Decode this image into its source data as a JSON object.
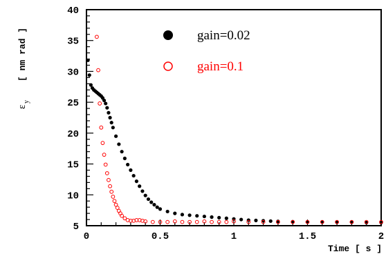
{
  "chart_data": {
    "type": "scatter",
    "xlabel": "Time [ s ]",
    "ylabel_symbol": "ε",
    "ylabel_sub": "y",
    "ylabel_unit": "[ nm rad ]",
    "xlim": [
      0,
      2
    ],
    "ylim": [
      5,
      40
    ],
    "xticks": [
      0,
      0.5,
      1,
      1.5,
      2
    ],
    "xtick_labels": [
      "0",
      "0.5",
      "1",
      "1.5",
      "2"
    ],
    "yticks": [
      5,
      10,
      15,
      20,
      25,
      30,
      35,
      40
    ],
    "ytick_labels": [
      "5",
      "10",
      "15",
      "20",
      "25",
      "30",
      "35",
      "40"
    ],
    "legend_position": "top-right",
    "series": [
      {
        "name": "gain=0.02",
        "marker": "filled-circle",
        "color": "#000000",
        "x": [
          0.01,
          0.02,
          0.03,
          0.04,
          0.05,
          0.06,
          0.07,
          0.08,
          0.09,
          0.1,
          0.11,
          0.12,
          0.13,
          0.14,
          0.15,
          0.16,
          0.17,
          0.18,
          0.2,
          0.22,
          0.24,
          0.26,
          0.28,
          0.3,
          0.32,
          0.34,
          0.36,
          0.38,
          0.4,
          0.42,
          0.44,
          0.46,
          0.48,
          0.5,
          0.55,
          0.6,
          0.65,
          0.7,
          0.75,
          0.8,
          0.85,
          0.9,
          0.95,
          1.0,
          1.05,
          1.1,
          1.15,
          1.2,
          1.25,
          1.3,
          1.4,
          1.5,
          1.6,
          1.7,
          1.8,
          1.9,
          2.0
        ],
        "y": [
          31.8,
          29.4,
          27.8,
          27.3,
          27.0,
          26.8,
          26.6,
          26.4,
          26.2,
          26.0,
          25.7,
          25.3,
          24.8,
          24.1,
          23.3,
          22.5,
          21.7,
          20.9,
          19.5,
          18.2,
          17.0,
          15.9,
          14.9,
          14.0,
          13.1,
          12.2,
          11.4,
          10.6,
          9.9,
          9.3,
          8.8,
          8.4,
          8.0,
          7.7,
          7.3,
          7.0,
          6.8,
          6.7,
          6.6,
          6.5,
          6.4,
          6.3,
          6.2,
          6.1,
          6.0,
          5.9,
          5.85,
          5.8,
          5.75,
          5.7,
          5.65,
          5.6,
          5.6,
          5.55,
          5.55,
          5.5,
          5.5
        ]
      },
      {
        "name": "gain=0.1",
        "marker": "open-circle",
        "color": "#ff0000",
        "x": [
          0.07,
          0.08,
          0.09,
          0.1,
          0.11,
          0.12,
          0.13,
          0.14,
          0.15,
          0.16,
          0.17,
          0.18,
          0.19,
          0.2,
          0.21,
          0.22,
          0.23,
          0.24,
          0.26,
          0.28,
          0.3,
          0.32,
          0.34,
          0.36,
          0.38,
          0.4,
          0.45,
          0.5,
          0.55,
          0.6,
          0.65,
          0.7,
          0.75,
          0.8,
          0.85,
          0.9,
          0.95,
          1.0,
          1.1,
          1.2,
          1.3,
          1.4,
          1.5,
          1.6,
          1.7,
          1.8,
          1.9,
          2.0
        ],
        "y": [
          35.6,
          30.2,
          24.8,
          20.9,
          18.4,
          16.5,
          14.9,
          13.5,
          12.4,
          11.4,
          10.5,
          9.7,
          9.0,
          8.4,
          7.9,
          7.4,
          7.0,
          6.6,
          6.2,
          5.9,
          5.8,
          5.8,
          5.9,
          5.9,
          5.8,
          5.7,
          5.6,
          5.6,
          5.6,
          5.7,
          5.6,
          5.6,
          5.6,
          5.7,
          5.6,
          5.6,
          5.6,
          5.7,
          5.6,
          5.6,
          5.6,
          5.6,
          5.6,
          5.6,
          5.6,
          5.6,
          5.6,
          5.6
        ]
      }
    ]
  }
}
